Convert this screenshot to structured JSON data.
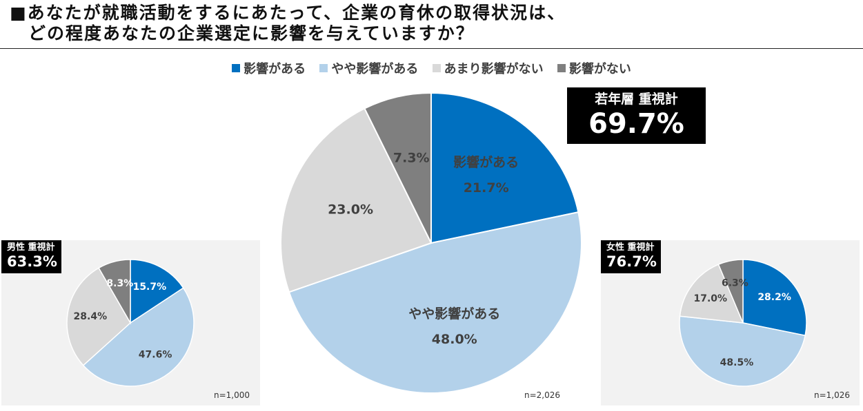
{
  "title": {
    "line1": "■あなたが就職活動をするにあたって、企業の育休の取得状況は、",
    "line2": "　どの程度あなたの企業選定に影響を与えていますか？"
  },
  "legend": [
    {
      "label": "影響がある",
      "color": "#0070c0"
    },
    {
      "label": "やや影響がある",
      "color": "#b3d1ea"
    },
    {
      "label": "あまり影響がない",
      "color": "#d9d9d9"
    },
    {
      "label": "影響がない",
      "color": "#7f7f7f"
    }
  ],
  "badges": {
    "main": {
      "label": "若年層 重視計",
      "value": "69.7%"
    },
    "male": {
      "label": "男性 重視計",
      "value": "63.3%"
    },
    "female": {
      "label": "女性 重視計",
      "value": "76.7%"
    }
  },
  "chart_data": [
    {
      "type": "pie",
      "name": "若年層",
      "categories": [
        "影響がある",
        "やや影響がある",
        "あまり影響がない",
        "影響がない"
      ],
      "values": [
        21.7,
        48.0,
        23.0,
        7.3
      ],
      "labels": [
        "21.7%",
        "48.0%",
        "23.0%",
        "7.3%"
      ],
      "category_labels_shown": [
        "影響がある",
        "やや影響がある",
        "",
        ""
      ],
      "label_colors": [
        "#404040",
        "#404040",
        "#404040",
        "#404040"
      ],
      "colors": [
        "#0070c0",
        "#b3d1ea",
        "#d9d9d9",
        "#7f7f7f"
      ],
      "n": "n=2,026"
    },
    {
      "type": "pie",
      "name": "男性",
      "categories": [
        "影響がある",
        "やや影響がある",
        "あまり影響がない",
        "影響がない"
      ],
      "values": [
        15.7,
        47.6,
        28.4,
        8.3
      ],
      "labels": [
        "15.7%",
        "47.6%",
        "28.4%",
        "8.3%"
      ],
      "label_colors": [
        "#ffffff",
        "#404040",
        "#404040",
        "#ffffff"
      ],
      "colors": [
        "#0070c0",
        "#b3d1ea",
        "#d9d9d9",
        "#7f7f7f"
      ],
      "n": "n=1,000"
    },
    {
      "type": "pie",
      "name": "女性",
      "categories": [
        "影響がある",
        "やや影響がある",
        "あまり影響がない",
        "影響がない"
      ],
      "values": [
        28.2,
        48.5,
        17.0,
        6.3
      ],
      "labels": [
        "28.2%",
        "48.5%",
        "17.0%",
        "6.3%"
      ],
      "label_colors": [
        "#ffffff",
        "#404040",
        "#404040",
        "#404040"
      ],
      "colors": [
        "#0070c0",
        "#b3d1ea",
        "#d9d9d9",
        "#7f7f7f"
      ],
      "n": "n=1,026"
    }
  ]
}
